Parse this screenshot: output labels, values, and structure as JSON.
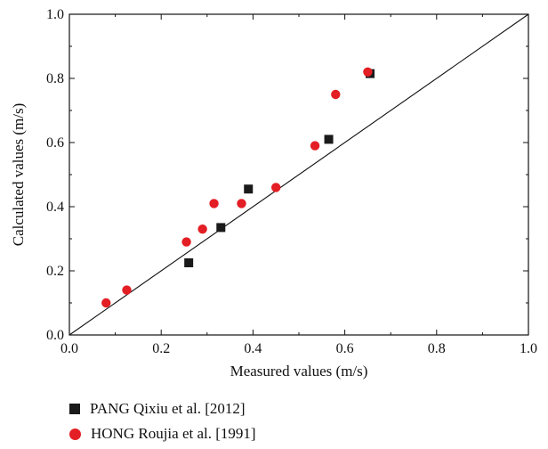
{
  "chart_data": {
    "type": "scatter",
    "xlabel": "Measured values (m/s)",
    "ylabel": "Calculated values (m/s)",
    "xlim": [
      0.0,
      1.0
    ],
    "ylim": [
      0.0,
      1.0
    ],
    "xticks": [
      "0.0",
      "0.2",
      "0.4",
      "0.6",
      "0.8",
      "1.0"
    ],
    "yticks": [
      "0.0",
      "0.2",
      "0.4",
      "0.6",
      "0.8",
      "1.0"
    ],
    "grid": false,
    "legend_position": "below",
    "reference_line": [
      [
        0,
        0
      ],
      [
        1,
        1
      ]
    ],
    "series": [
      {
        "name": "PANG Qixiu et al. [2012]",
        "marker": "square",
        "color": "#1a1a1a",
        "points": [
          {
            "x": 0.26,
            "y": 0.225
          },
          {
            "x": 0.33,
            "y": 0.335
          },
          {
            "x": 0.39,
            "y": 0.455
          },
          {
            "x": 0.565,
            "y": 0.61
          },
          {
            "x": 0.655,
            "y": 0.815
          }
        ]
      },
      {
        "name": "HONG Roujia et al. [1991]",
        "marker": "circle",
        "color": "#e31e24",
        "points": [
          {
            "x": 0.08,
            "y": 0.1
          },
          {
            "x": 0.125,
            "y": 0.14
          },
          {
            "x": 0.255,
            "y": 0.29
          },
          {
            "x": 0.29,
            "y": 0.33
          },
          {
            "x": 0.315,
            "y": 0.41
          },
          {
            "x": 0.375,
            "y": 0.41
          },
          {
            "x": 0.45,
            "y": 0.46
          },
          {
            "x": 0.535,
            "y": 0.59
          },
          {
            "x": 0.58,
            "y": 0.75
          },
          {
            "x": 0.65,
            "y": 0.82
          }
        ]
      }
    ]
  }
}
